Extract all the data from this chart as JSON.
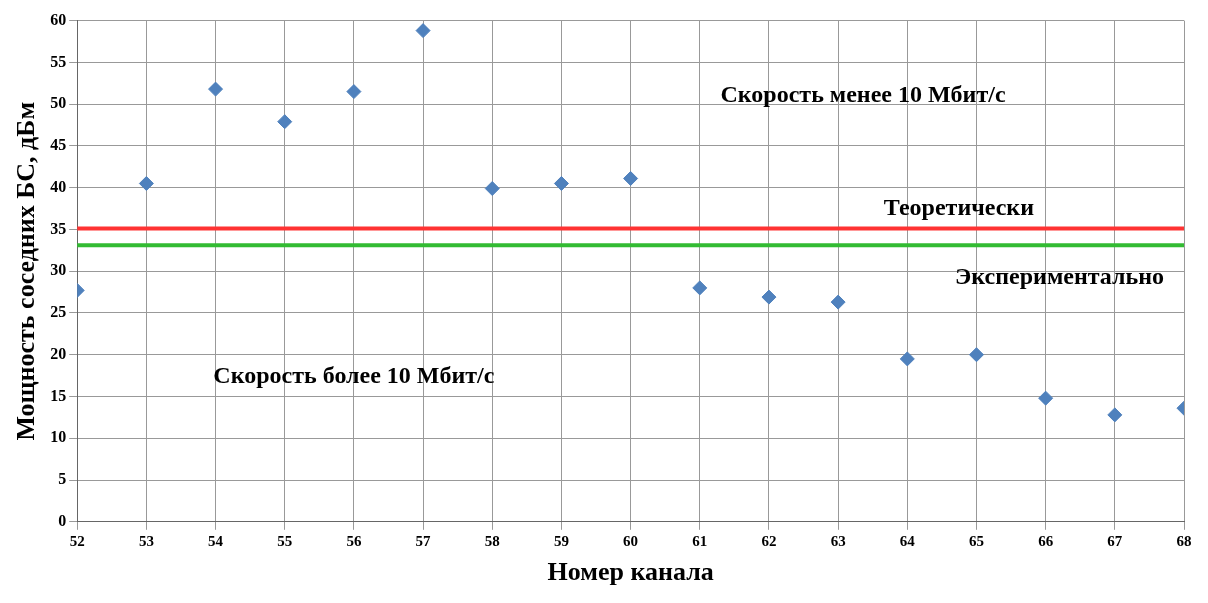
{
  "chart_data": {
    "type": "scatter",
    "xlabel": "Номер канала",
    "ylabel": "Мощность соседних БС, дБм",
    "x": [
      52,
      53,
      54,
      55,
      56,
      57,
      58,
      59,
      60,
      61,
      62,
      63,
      64,
      65,
      66,
      67,
      68
    ],
    "series": [
      {
        "color": "#4f81bd",
        "values": [
          27.7,
          40.5,
          51.8,
          47.9,
          51.5,
          58.8,
          39.9,
          40.5,
          41.1,
          28.0,
          26.9,
          26.3,
          19.5,
          20.0,
          14.8,
          12.8,
          13.6
        ]
      }
    ],
    "xlim": [
      52,
      68
    ],
    "xticks": [
      52,
      53,
      54,
      55,
      56,
      57,
      58,
      59,
      60,
      61,
      62,
      63,
      64,
      65,
      66,
      67,
      68
    ],
    "ylim": [
      0,
      60
    ],
    "yticks": [
      0,
      5,
      10,
      15,
      20,
      25,
      30,
      35,
      40,
      45,
      50,
      55,
      60
    ],
    "grid": true,
    "marker": "diamond",
    "legend": false,
    "ref_lines": [
      {
        "axis": "y",
        "value": 35.1,
        "label": "Теоретически",
        "color": "#ff3333"
      },
      {
        "axis": "y",
        "value": 33.1,
        "label": "Экспериментально",
        "color": "#33bb33"
      }
    ],
    "annotations": [
      "Скорость менее 10 Мбит/с",
      "Скорость более 10 Мбит/с"
    ]
  }
}
